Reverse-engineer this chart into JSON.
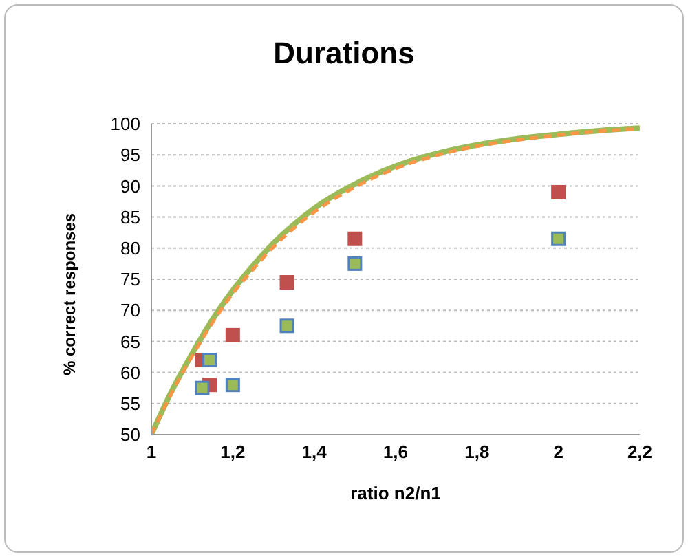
{
  "chart_data": {
    "type": "scatter",
    "title": "Durations",
    "xlabel": "ratio n2/n1",
    "ylabel": "% correct responses",
    "xlim": [
      1,
      2.2
    ],
    "xticks": [
      1,
      {
        "value": 1.2,
        "label": "1,2"
      },
      {
        "value": 1.4,
        "label": "1,4"
      },
      {
        "value": 1.6,
        "label": "1,6"
      },
      {
        "value": 1.8,
        "label": "1,8"
      },
      2,
      {
        "value": 2.2,
        "label": "2,2"
      }
    ],
    "ylim": [
      50,
      100
    ],
    "yticks": [
      50,
      55,
      60,
      65,
      70,
      75,
      80,
      85,
      90,
      95,
      100
    ],
    "grid": "y",
    "series": [
      {
        "type": "line",
        "color": "#9bbb59",
        "line_style": "solid",
        "marker": "none",
        "x": [
          1,
          1.05,
          1.1,
          1.15,
          1.2,
          1.25,
          1.3,
          1.35,
          1.4,
          1.5,
          1.6,
          1.7,
          1.8,
          1.9,
          2,
          2.1,
          2.2
        ],
        "values": [
          50,
          57,
          63,
          68.5,
          73.2,
          77.2,
          80.8,
          83.8,
          86.4,
          90.3,
          93.2,
          95.2,
          96.6,
          97.6,
          98.3,
          98.9,
          99.3
        ]
      },
      {
        "type": "line",
        "color": "#f79646",
        "line_style": "dashed",
        "marker": "none",
        "x": [
          1,
          1.05,
          1.1,
          1.15,
          1.2,
          1.25,
          1.3,
          1.35,
          1.4,
          1.5,
          1.6,
          1.7,
          1.8,
          1.9,
          2,
          2.1,
          2.2
        ],
        "values": [
          50,
          56.7,
          62.6,
          68,
          72.7,
          76.6,
          80.2,
          83.2,
          85.8,
          89.8,
          92.8,
          94.9,
          96.4,
          97.4,
          98.2,
          98.8,
          99.2
        ]
      },
      {
        "type": "scatter",
        "color": "#c0504d",
        "marker": "square",
        "x": [
          1.125,
          1.143,
          1.2,
          1.333,
          1.5,
          2
        ],
        "values": [
          62,
          58,
          66,
          74.5,
          81.5,
          89
        ]
      },
      {
        "type": "scatter",
        "color": "#9bbb59",
        "marker": "square",
        "x": [
          1.125,
          1.143,
          1.2,
          1.333,
          1.5,
          2
        ],
        "values": [
          57.5,
          62,
          58,
          67.5,
          77.5,
          81.5
        ]
      }
    ]
  }
}
